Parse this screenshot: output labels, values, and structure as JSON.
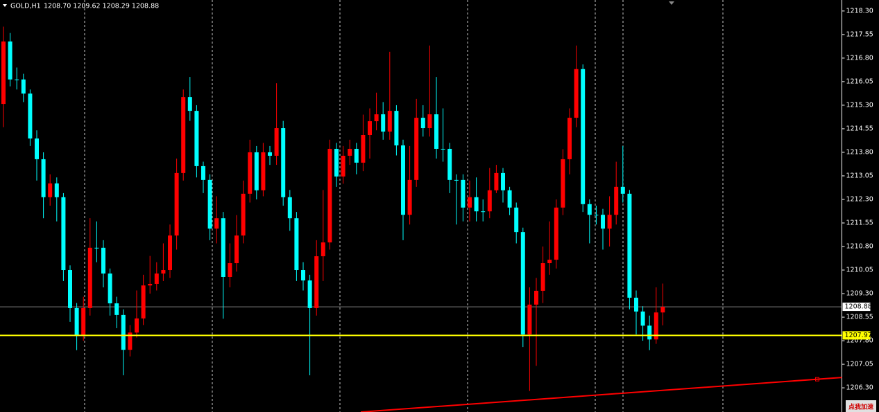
{
  "chart_data": {
    "type": "candlestick",
    "symbol": "GOLD,H1",
    "ohlc_text": "1208.70 1209.62 1208.29 1208.88",
    "up_color": "#ff0000",
    "down_color": "#00ffff",
    "open": [
      1215.34,
      1217.33,
      1216.12,
      1216.12,
      1215.67,
      1214.24,
      1213.58,
      1212.37,
      1212.81,
      1212.37,
      1210.05,
      1208.84,
      1207.95,
      1208.84,
      1210.76,
      1210.76,
      1209.94,
      1208.99,
      1208.62,
      1207.51,
      1208.06,
      1208.51,
      1209.56,
      1209.61,
      1209.94,
      1210.05,
      1211.15,
      1213.14,
      1215.56,
      1215.12,
      1213.36,
      1212.92,
      1211.37,
      1211.7,
      1209.83,
      1210.27,
      1211.15,
      1212.48,
      1213.8,
      1212.59,
      1213.8,
      1213.69,
      1214.57,
      1212.37,
      1211.7,
      1210.05,
      1209.72,
      1208.84,
      1210.49,
      1210.93,
      1213.91,
      1213.03,
      1213.69,
      1213.91,
      1213.47,
      1214.35,
      1214.79,
      1215.01,
      1214.46,
      1215.12,
      1214.02,
      1211.81,
      1212.92,
      1214.9,
      1214.57,
      1215.01,
      1213.91,
      1213.91,
      1212.92,
      1212.92,
      1212.04,
      1212.37,
      1211.92,
      1211.92,
      1212.59,
      1213.14,
      1212.59,
      1212.04,
      1211.26,
      1208.0,
      1208.95,
      1209.39,
      1210.27,
      1210.38,
      1212.04,
      1213.58,
      1214.9,
      1216.45,
      1212.15,
      1211.81,
      1211.81,
      1211.37,
      1211.81,
      1212.7,
      1212.48,
      1209.17,
      1208.73,
      1208.28,
      1207.84,
      1208.7
    ],
    "high": [
      1217.8,
      1217.6,
      1216.5,
      1216.3,
      1215.8,
      1214.5,
      1213.8,
      1213.1,
      1213.0,
      1212.5,
      1210.2,
      1209.0,
      1209.2,
      1211.7,
      1211.6,
      1211.0,
      1210.1,
      1209.2,
      1208.8,
      1208.3,
      1209.4,
      1209.9,
      1210.5,
      1210.3,
      1210.9,
      1211.5,
      1213.6,
      1215.8,
      1216.2,
      1215.3,
      1213.5,
      1213.1,
      1212.4,
      1211.9,
      1210.9,
      1211.8,
      1212.9,
      1214.2,
      1214.0,
      1214.1,
      1214.0,
      1216.0,
      1214.8,
      1212.6,
      1211.9,
      1210.3,
      1209.9,
      1211.0,
      1212.6,
      1214.2,
      1214.1,
      1214.0,
      1214.2,
      1214.1,
      1215.0,
      1215.2,
      1215.7,
      1215.4,
      1217.0,
      1215.3,
      1214.2,
      1214.0,
      1215.5,
      1215.3,
      1217.2,
      1216.2,
      1215.2,
      1214.1,
      1213.1,
      1213.1,
      1212.9,
      1213.0,
      1212.3,
      1213.3,
      1213.4,
      1213.3,
      1212.7,
      1212.2,
      1211.4,
      1209.5,
      1209.8,
      1210.8,
      1211.6,
      1212.3,
      1213.9,
      1215.2,
      1217.2,
      1216.6,
      1212.3,
      1212.1,
      1212.0,
      1212.4,
      1213.5,
      1214.0,
      1212.6,
      1209.4,
      1208.9,
      1208.6,
      1209.5,
      1209.62
    ],
    "low": [
      1214.6,
      1215.9,
      1215.8,
      1215.4,
      1214.0,
      1212.9,
      1211.7,
      1212.1,
      1211.6,
      1209.7,
      1208.4,
      1207.5,
      1207.8,
      1208.6,
      1210.3,
      1209.5,
      1208.6,
      1208.2,
      1206.7,
      1207.3,
      1207.9,
      1208.3,
      1209.3,
      1209.4,
      1209.7,
      1209.8,
      1210.7,
      1212.9,
      1214.8,
      1213.0,
      1212.5,
      1211.0,
      1210.9,
      1208.5,
      1209.5,
      1210.0,
      1210.9,
      1212.2,
      1212.3,
      1212.4,
      1213.4,
      1213.4,
      1212.1,
      1211.3,
      1209.7,
      1209.4,
      1206.7,
      1208.6,
      1209.7,
      1210.7,
      1212.7,
      1212.8,
      1213.4,
      1213.1,
      1213.2,
      1213.6,
      1214.5,
      1214.2,
      1214.2,
      1213.7,
      1211.0,
      1211.5,
      1212.7,
      1214.3,
      1214.3,
      1213.6,
      1213.5,
      1212.5,
      1211.5,
      1211.6,
      1211.6,
      1211.6,
      1211.6,
      1211.7,
      1212.5,
      1212.2,
      1211.8,
      1210.9,
      1207.6,
      1206.2,
      1207.0,
      1209.0,
      1209.9,
      1210.1,
      1211.8,
      1213.1,
      1214.6,
      1211.9,
      1210.9,
      1211.5,
      1210.7,
      1210.8,
      1211.5,
      1212.2,
      1208.8,
      1208.0,
      1207.8,
      1207.5,
      1207.7,
      1208.29
    ],
    "close": [
      1217.33,
      1216.12,
      1216.12,
      1215.67,
      1214.24,
      1213.58,
      1212.37,
      1212.81,
      1212.37,
      1210.05,
      1208.84,
      1207.95,
      1208.84,
      1210.76,
      1210.76,
      1209.94,
      1208.99,
      1208.62,
      1207.51,
      1208.06,
      1208.51,
      1209.56,
      1209.61,
      1209.94,
      1210.05,
      1211.15,
      1213.14,
      1215.56,
      1215.12,
      1213.36,
      1212.92,
      1211.37,
      1211.7,
      1209.83,
      1210.27,
      1211.15,
      1212.48,
      1213.8,
      1212.59,
      1213.8,
      1213.69,
      1214.57,
      1212.37,
      1211.7,
      1210.05,
      1209.72,
      1208.84,
      1210.49,
      1210.93,
      1213.91,
      1213.03,
      1213.69,
      1213.91,
      1213.47,
      1214.35,
      1214.79,
      1215.01,
      1214.46,
      1215.12,
      1214.02,
      1211.81,
      1212.92,
      1214.9,
      1214.57,
      1215.01,
      1213.91,
      1213.91,
      1212.92,
      1212.92,
      1212.04,
      1212.37,
      1211.92,
      1211.92,
      1212.59,
      1213.14,
      1212.59,
      1212.04,
      1211.26,
      1208.0,
      1208.95,
      1209.39,
      1210.27,
      1210.38,
      1212.04,
      1213.58,
      1214.9,
      1216.45,
      1212.15,
      1211.81,
      1211.81,
      1211.37,
      1211.81,
      1212.7,
      1212.48,
      1209.17,
      1208.73,
      1208.28,
      1207.84,
      1208.7,
      1208.88
    ],
    "ylim": [
      1205.53,
      1218.65
    ],
    "yticks": [
      {
        "value": 1218.3,
        "label": "1218.30"
      },
      1217.55,
      {
        "value": 1216.8,
        "label": "1216.80"
      },
      1216.05,
      {
        "value": 1215.3,
        "label": "1215.30"
      },
      1214.55,
      {
        "value": 1213.8,
        "label": "1213.80"
      },
      1213.05,
      {
        "value": 1212.3,
        "label": "1212.30"
      },
      1211.55,
      {
        "value": 1210.8,
        "label": "1210.80"
      },
      1210.05,
      {
        "value": 1209.3,
        "label": "1209.30"
      },
      1208.55,
      {
        "value": 1207.8,
        "label": "1207.80"
      },
      1207.05,
      {
        "value": 1206.3,
        "label": "1206.30"
      }
    ],
    "bid_line": 1208.88,
    "horizontal_line": {
      "value": 1207.97,
      "color": "#ffff00"
    },
    "trend_line": {
      "start": 1205.53,
      "end": 1206.63,
      "color": "#ff0000"
    },
    "button": "点我加速"
  }
}
